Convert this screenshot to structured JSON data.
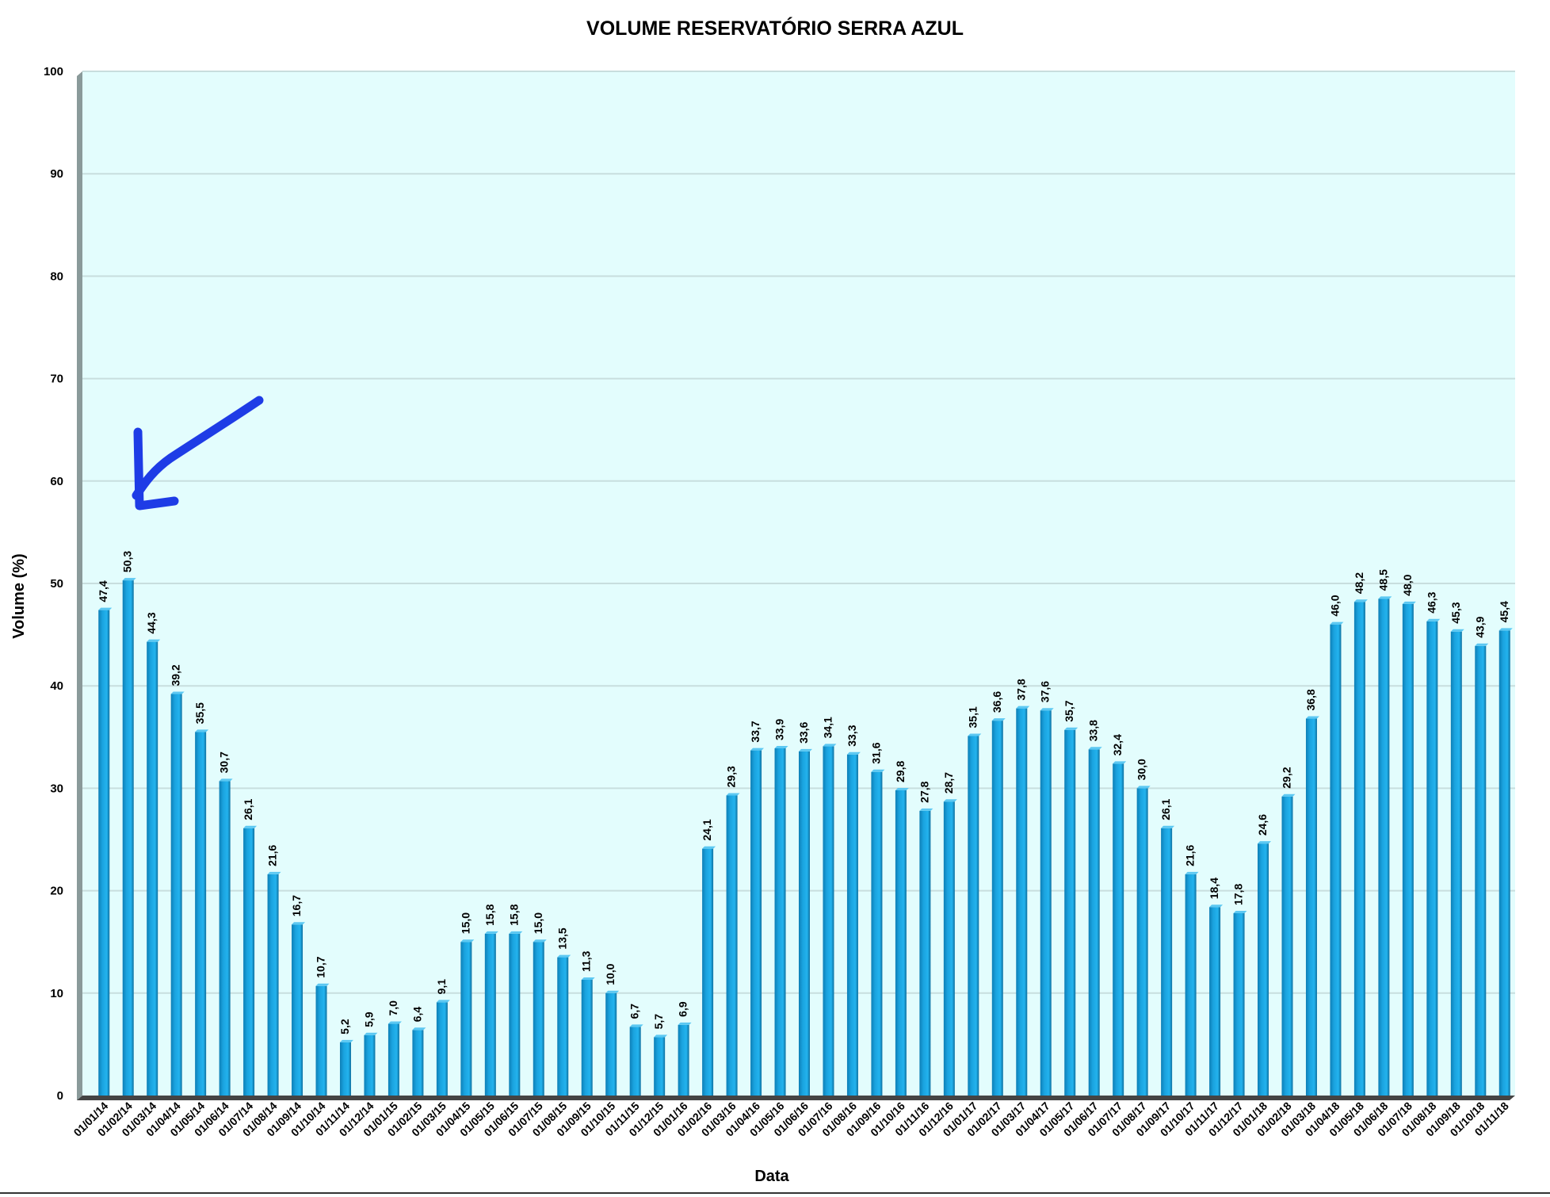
{
  "chart_data": {
    "type": "bar",
    "title": "VOLUME RESERVATÓRIO SERRA AZUL",
    "xlabel": "Data",
    "ylabel": "Volume (%)",
    "ylim": [
      0,
      100
    ],
    "yticks": [
      0,
      10,
      20,
      30,
      40,
      50,
      60,
      70,
      80,
      90,
      100
    ],
    "grid": true,
    "legend": "none",
    "colors": {
      "bar": "#1aa3df",
      "bar_dark": "#0c6f9f",
      "plot_bg": "#e3fdfd",
      "grid": "#c8dede",
      "annotation": "#1e3ce6"
    },
    "annotation": {
      "type": "hand-drawn-arrow",
      "target": "01/02/14"
    },
    "categories": [
      "01/01/14",
      "01/02/14",
      "01/03/14",
      "01/04/14",
      "01/05/14",
      "01/06/14",
      "01/07/14",
      "01/08/14",
      "01/09/14",
      "01/10/14",
      "01/11/14",
      "01/12/14",
      "01/01/15",
      "01/02/15",
      "01/03/15",
      "01/04/15",
      "01/05/15",
      "01/06/15",
      "01/07/15",
      "01/08/15",
      "01/09/15",
      "01/10/15",
      "01/11/15",
      "01/12/15",
      "01/01/16",
      "01/02/16",
      "01/03/16",
      "01/04/16",
      "01/05/16",
      "01/06/16",
      "01/07/16",
      "01/08/16",
      "01/09/16",
      "01/10/16",
      "01/11/16",
      "01/12/16",
      "01/01/17",
      "01/02/17",
      "01/03/17",
      "01/04/17",
      "01/05/17",
      "01/06/17",
      "01/07/17",
      "01/08/17",
      "01/09/17",
      "01/10/17",
      "01/11/17",
      "01/12/17",
      "01/01/18",
      "01/02/18",
      "01/03/18",
      "01/04/18",
      "01/05/18",
      "01/06/18",
      "01/07/18",
      "01/08/18",
      "01/09/18",
      "01/10/18",
      "01/11/18"
    ],
    "values": [
      47.4,
      50.3,
      44.3,
      39.2,
      35.5,
      30.7,
      26.1,
      21.6,
      16.7,
      10.7,
      5.2,
      5.9,
      7.0,
      6.4,
      9.1,
      15.0,
      15.8,
      15.8,
      15.0,
      13.5,
      11.3,
      10.0,
      6.7,
      5.7,
      6.9,
      24.1,
      29.3,
      33.7,
      33.9,
      33.6,
      34.1,
      33.3,
      31.6,
      29.8,
      27.8,
      28.7,
      35.1,
      36.6,
      37.8,
      37.6,
      35.7,
      33.8,
      32.4,
      30.0,
      26.1,
      21.6,
      18.4,
      17.8,
      24.6,
      29.2,
      36.8,
      46.0,
      48.2,
      48.5,
      48.0,
      46.3,
      45.3,
      43.9,
      45.4
    ],
    "value_labels": [
      "47,4",
      "50,3",
      "44,3",
      "39,2",
      "35,5",
      "30,7",
      "26,1",
      "21,6",
      "16,7",
      "10,7",
      "5,2",
      "5,9",
      "7,0",
      "6,4",
      "9,1",
      "15,0",
      "15,8",
      "15,8",
      "15,0",
      "13,5",
      "11,3",
      "10,0",
      "6,7",
      "5,7",
      "6,9",
      "24,1",
      "29,3",
      "33,7",
      "33,9",
      "33,6",
      "34,1",
      "33,3",
      "31,6",
      "29,8",
      "27,8",
      "28,7",
      "35,1",
      "36,6",
      "37,8",
      "37,6",
      "35,7",
      "33,8",
      "32,4",
      "30,0",
      "26,1",
      "21,6",
      "18,4",
      "17,8",
      "24,6",
      "29,2",
      "36,8",
      "46,0",
      "48,2",
      "48,5",
      "48,0",
      "46,3",
      "45,3",
      "43,9",
      "45,4"
    ]
  }
}
